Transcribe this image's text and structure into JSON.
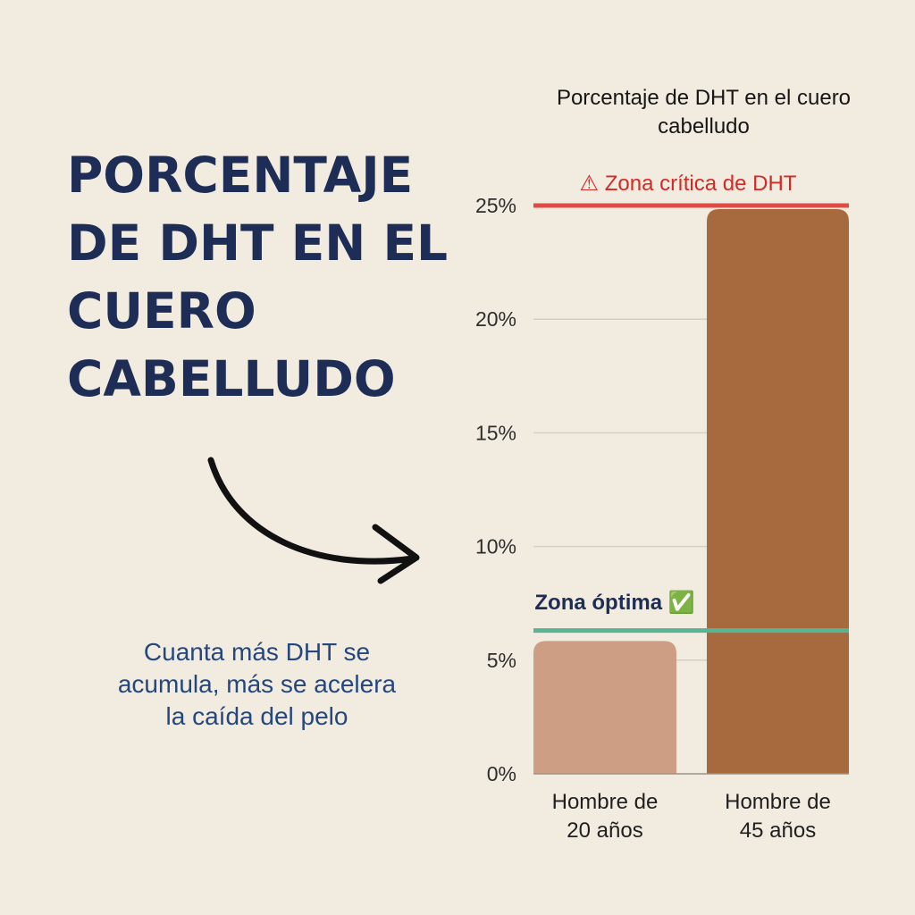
{
  "headline": "PORCENTAJE DE DHT EN EL CUERO CABELLUDO",
  "caption": "Cuanta más DHT se acumula, más se acelera la caída del pelo",
  "colors": {
    "background": "#f2ebdf",
    "headline": "#1d2d55",
    "caption": "#24477e",
    "bar_young": "#cd9e84",
    "bar_old": "#a66a3e",
    "critical_line": "#e24b45",
    "optimal_line": "#58b495"
  },
  "chart_data": {
    "type": "bar",
    "title": "Porcentaje de DHT en el cuero cabelludo",
    "categories": [
      "Hombre de 20 años",
      "Hombre de 45 años"
    ],
    "category_lines": [
      [
        "Hombre de",
        "20 años"
      ],
      [
        "Hombre de",
        "45 años"
      ]
    ],
    "values": [
      6,
      25
    ],
    "ylim": [
      0,
      25
    ],
    "y_ticks": [
      0,
      5,
      10,
      15,
      20,
      25
    ],
    "y_tick_labels": [
      "0%",
      "5%",
      "10%",
      "15%",
      "20%",
      "25%"
    ],
    "grid": true,
    "reference_lines": [
      {
        "label": "⚠ Zona crítica de DHT",
        "value": 25,
        "color": "#e24b45"
      },
      {
        "label": "Zona óptima ✅",
        "value": 6.5,
        "color": "#58b495"
      }
    ]
  }
}
